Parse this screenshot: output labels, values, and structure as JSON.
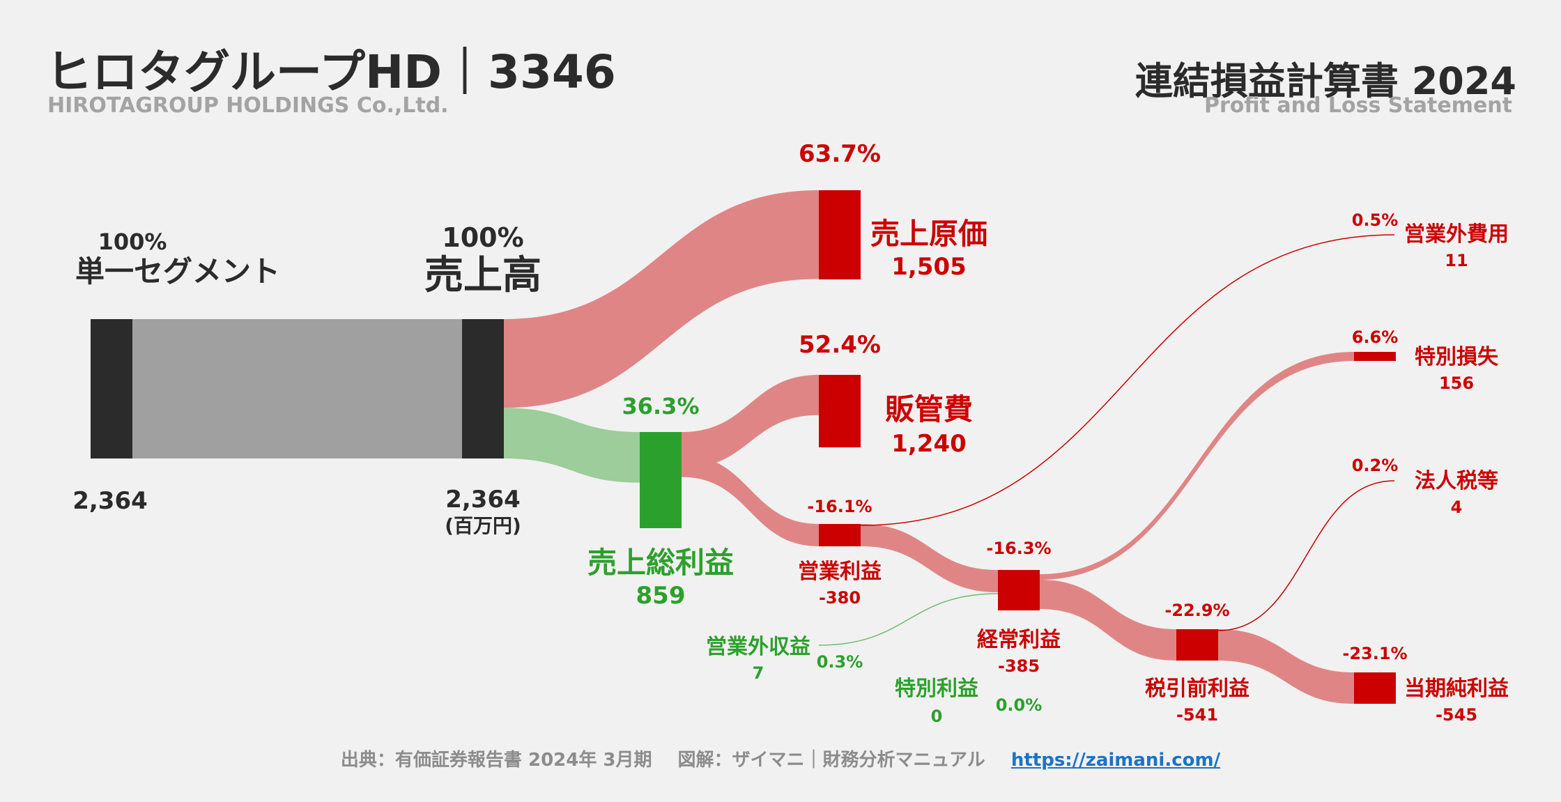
{
  "header": {
    "title": "ヒロタグループHD｜3346",
    "subtitle": "HIROTAGROUP HOLDINGS Co.,Ltd.",
    "statement_title": "連結損益計算書 2024",
    "statement_subtitle": "Profit and Loss Statement"
  },
  "footer": {
    "source": "出典：有価証券報告書 2024年 3月期",
    "illustration": "図解：ザイマニ｜財務分析マニュアル",
    "url": "https://zaimani.com/"
  },
  "colors": {
    "background": "#f1f1f1",
    "node_dark": "#2b2b2b",
    "segment_flow": "#a0a0a0",
    "profit_node": "#2ca02c",
    "profit_flow": "#9ccd9a",
    "cost_node": "#cc0000",
    "cost_flow": "#e08585",
    "title_text": "#2b2b2b",
    "subtitle_text": "#a3a3a3",
    "link": "#1a73c8"
  },
  "chart_data": {
    "type": "sankey",
    "unit": "(百万円)",
    "nodes": [
      {
        "id": "segment",
        "label": "単一セグメント",
        "value": "2,364",
        "pct": "100%"
      },
      {
        "id": "revenue",
        "label": "売上高",
        "value": "2,364",
        "pct": "100%"
      },
      {
        "id": "cogs",
        "label": "売上原価",
        "value": "1,505",
        "pct": "63.7%"
      },
      {
        "id": "gross",
        "label": "売上総利益",
        "value": "859",
        "pct": "36.3%"
      },
      {
        "id": "sga",
        "label": "販管費",
        "value": "1,240",
        "pct": "52.4%"
      },
      {
        "id": "op",
        "label": "営業利益",
        "value": "-380",
        "pct": "-16.1%"
      },
      {
        "id": "nonop_inc",
        "label": "営業外収益",
        "value": "7",
        "pct": "0.3%"
      },
      {
        "id": "nonop_exp",
        "label": "営業外費用",
        "value": "11",
        "pct": "0.5%"
      },
      {
        "id": "ordinary",
        "label": "経常利益",
        "value": "-385",
        "pct": "-16.3%"
      },
      {
        "id": "ext_gain",
        "label": "特別利益",
        "value": "0",
        "pct": "0.0%"
      },
      {
        "id": "ext_loss",
        "label": "特別損失",
        "value": "156",
        "pct": "6.6%"
      },
      {
        "id": "pretax",
        "label": "税引前利益",
        "value": "-541",
        "pct": "-22.9%"
      },
      {
        "id": "tax",
        "label": "法人税等",
        "value": "4",
        "pct": "0.2%"
      },
      {
        "id": "net",
        "label": "当期純利益",
        "value": "-545",
        "pct": "-23.1%"
      }
    ],
    "links": [
      {
        "source": "segment",
        "target": "revenue",
        "value": 2364
      },
      {
        "source": "revenue",
        "target": "cogs",
        "value": 1505
      },
      {
        "source": "revenue",
        "target": "gross",
        "value": 859
      },
      {
        "source": "gross",
        "target": "sga",
        "value": 1240
      },
      {
        "source": "gross",
        "target": "op",
        "value": 380
      },
      {
        "source": "op",
        "target": "nonop_exp",
        "value": 11
      },
      {
        "source": "nonop_inc",
        "target": "ordinary",
        "value": 7
      },
      {
        "source": "op",
        "target": "ordinary",
        "value": 385
      },
      {
        "source": "ordinary",
        "target": "ext_loss",
        "value": 156
      },
      {
        "source": "ordinary",
        "target": "pretax",
        "value": 541
      },
      {
        "source": "pretax",
        "target": "tax",
        "value": 4
      },
      {
        "source": "pretax",
        "target": "net",
        "value": 545
      }
    ]
  }
}
